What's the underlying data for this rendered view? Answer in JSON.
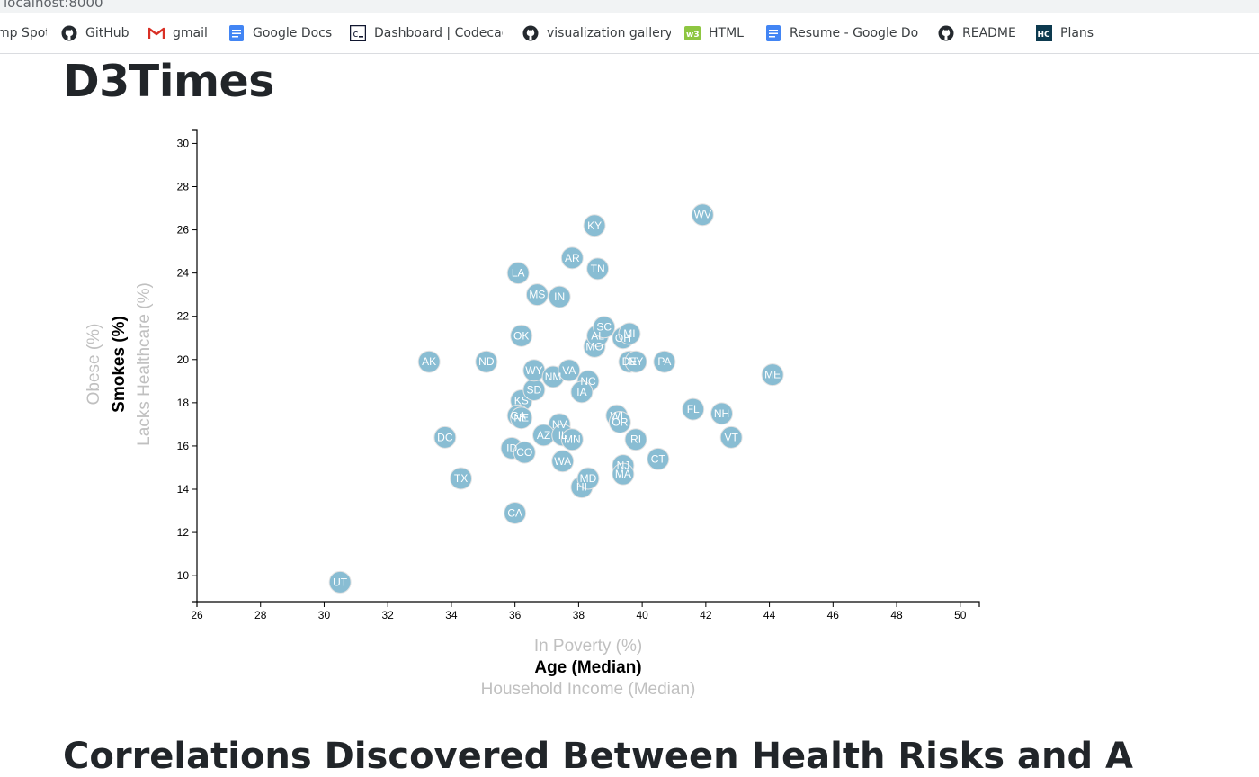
{
  "browser": {
    "url_text": "localhost:8000",
    "bookmarks": [
      {
        "label": "mp Spot",
        "icon": "none"
      },
      {
        "label": "GitHub",
        "icon": "github-icon"
      },
      {
        "label": "gmail",
        "icon": "gmail-icon"
      },
      {
        "label": "Google Docs",
        "icon": "google-docs-icon"
      },
      {
        "label": "Dashboard | Codecad",
        "icon": "codecademy-icon"
      },
      {
        "label": "visualization gallery",
        "icon": "github-icon"
      },
      {
        "label": "HTML",
        "icon": "w3schools-icon"
      },
      {
        "label": "Resume - Google Do",
        "icon": "google-docs-icon"
      },
      {
        "label": "README",
        "icon": "github-icon"
      },
      {
        "label": "Plans",
        "icon": "hc-icon"
      }
    ]
  },
  "page": {
    "title": "D3Times",
    "section_title": "Correlations Discovered Between Health Risks and A"
  },
  "chart_data": {
    "type": "scatter",
    "xlim": [
      26,
      50.6
    ],
    "ylim": [
      8.8,
      30.6
    ],
    "x_ticks": [
      26,
      28,
      30,
      32,
      34,
      36,
      38,
      40,
      42,
      44,
      46,
      48,
      50
    ],
    "y_ticks": [
      10,
      12,
      14,
      16,
      18,
      20,
      22,
      24,
      26,
      28,
      30
    ],
    "x_labels": [
      {
        "text": "In Poverty (%)",
        "active": false
      },
      {
        "text": "Age (Median)",
        "active": true
      },
      {
        "text": "Household Income (Median)",
        "active": false
      }
    ],
    "y_labels": [
      {
        "text": "Obese (%)",
        "active": false
      },
      {
        "text": "Smokes (%)",
        "active": true
      },
      {
        "text": "Lacks Healthcare (%)",
        "active": false
      }
    ],
    "colors": {
      "circle_fill": "#89bdd3",
      "circle_stroke": "#e3e3e3",
      "label": "#ffffff"
    },
    "points": [
      {
        "abbr": "UT",
        "x": 30.5,
        "y": 9.7
      },
      {
        "abbr": "AK",
        "x": 33.3,
        "y": 19.9
      },
      {
        "abbr": "DC",
        "x": 33.8,
        "y": 16.4
      },
      {
        "abbr": "TX",
        "x": 34.3,
        "y": 14.5
      },
      {
        "abbr": "ND",
        "x": 35.1,
        "y": 19.9
      },
      {
        "abbr": "CA",
        "x": 36.0,
        "y": 12.9
      },
      {
        "abbr": "ID",
        "x": 35.9,
        "y": 15.9
      },
      {
        "abbr": "CO",
        "x": 36.3,
        "y": 15.7
      },
      {
        "abbr": "LA",
        "x": 36.1,
        "y": 24.0
      },
      {
        "abbr": "OK",
        "x": 36.2,
        "y": 21.1
      },
      {
        "abbr": "KS",
        "x": 36.2,
        "y": 18.1
      },
      {
        "abbr": "GA",
        "x": 36.1,
        "y": 17.4
      },
      {
        "abbr": "NE",
        "x": 36.2,
        "y": 17.3
      },
      {
        "abbr": "SD",
        "x": 36.6,
        "y": 18.6
      },
      {
        "abbr": "WY",
        "x": 36.6,
        "y": 19.5
      },
      {
        "abbr": "MS",
        "x": 36.7,
        "y": 23.0
      },
      {
        "abbr": "NM",
        "x": 37.2,
        "y": 19.2
      },
      {
        "abbr": "IN",
        "x": 37.4,
        "y": 22.9
      },
      {
        "abbr": "NV",
        "x": 37.4,
        "y": 17.0
      },
      {
        "abbr": "AZ",
        "x": 36.9,
        "y": 16.5
      },
      {
        "abbr": "IL",
        "x": 37.5,
        "y": 16.5
      },
      {
        "abbr": "WA",
        "x": 37.5,
        "y": 15.3
      },
      {
        "abbr": "MN",
        "x": 37.8,
        "y": 16.3
      },
      {
        "abbr": "VA",
        "x": 37.7,
        "y": 19.5
      },
      {
        "abbr": "AR",
        "x": 37.8,
        "y": 24.7
      },
      {
        "abbr": "HI",
        "x": 38.1,
        "y": 14.1
      },
      {
        "abbr": "MD",
        "x": 38.3,
        "y": 14.5
      },
      {
        "abbr": "NC",
        "x": 38.3,
        "y": 19.0
      },
      {
        "abbr": "IA",
        "x": 38.1,
        "y": 18.5
      },
      {
        "abbr": "KY",
        "x": 38.5,
        "y": 26.2
      },
      {
        "abbr": "MO",
        "x": 38.5,
        "y": 20.6
      },
      {
        "abbr": "AL",
        "x": 38.6,
        "y": 21.1
      },
      {
        "abbr": "TN",
        "x": 38.6,
        "y": 24.2
      },
      {
        "abbr": "SC",
        "x": 38.8,
        "y": 21.5
      },
      {
        "abbr": "WI",
        "x": 39.2,
        "y": 17.4
      },
      {
        "abbr": "OR",
        "x": 39.3,
        "y": 17.1
      },
      {
        "abbr": "NJ",
        "x": 39.4,
        "y": 15.1
      },
      {
        "abbr": "MA",
        "x": 39.4,
        "y": 14.7
      },
      {
        "abbr": "OH",
        "x": 39.4,
        "y": 21.0
      },
      {
        "abbr": "MI",
        "x": 39.6,
        "y": 21.2
      },
      {
        "abbr": "DE",
        "x": 39.6,
        "y": 19.9
      },
      {
        "abbr": "NY",
        "x": 39.8,
        "y": 19.9
      },
      {
        "abbr": "RI",
        "x": 39.8,
        "y": 16.3
      },
      {
        "abbr": "CT",
        "x": 40.5,
        "y": 15.4
      },
      {
        "abbr": "PA",
        "x": 40.7,
        "y": 19.9
      },
      {
        "abbr": "FL",
        "x": 41.6,
        "y": 17.7
      },
      {
        "abbr": "WV",
        "x": 41.9,
        "y": 26.7
      },
      {
        "abbr": "NH",
        "x": 42.5,
        "y": 17.5
      },
      {
        "abbr": "VT",
        "x": 42.8,
        "y": 16.4
      },
      {
        "abbr": "ME",
        "x": 44.1,
        "y": 19.3
      }
    ]
  }
}
